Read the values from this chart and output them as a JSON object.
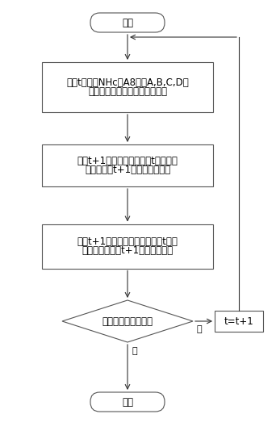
{
  "background_color": "#ffffff",
  "start_text": "开始",
  "end_text": "结束",
  "box1_line1": "根据t时刻的NHc和A8得到A,B,C,D矩",
  "box1_line2": "阵、稳态控制量以及稳态测量量",
  "box2_line1": "根据t+1时刻的控制量减去t时刻稳态",
  "box2_line2": "控制量作为t+1时刻模型的输入",
  "box3_line1": "计算t+1时刻模型的输出，加上t时刻",
  "box3_line2": "稳态测量量作为t+1时刻的测量量",
  "diamond_text": "动态过程是否结束？",
  "yes_text": "是",
  "no_text": "否",
  "side_box_text": "t=t+1",
  "font_size": 8.5,
  "small_font_size": 8
}
